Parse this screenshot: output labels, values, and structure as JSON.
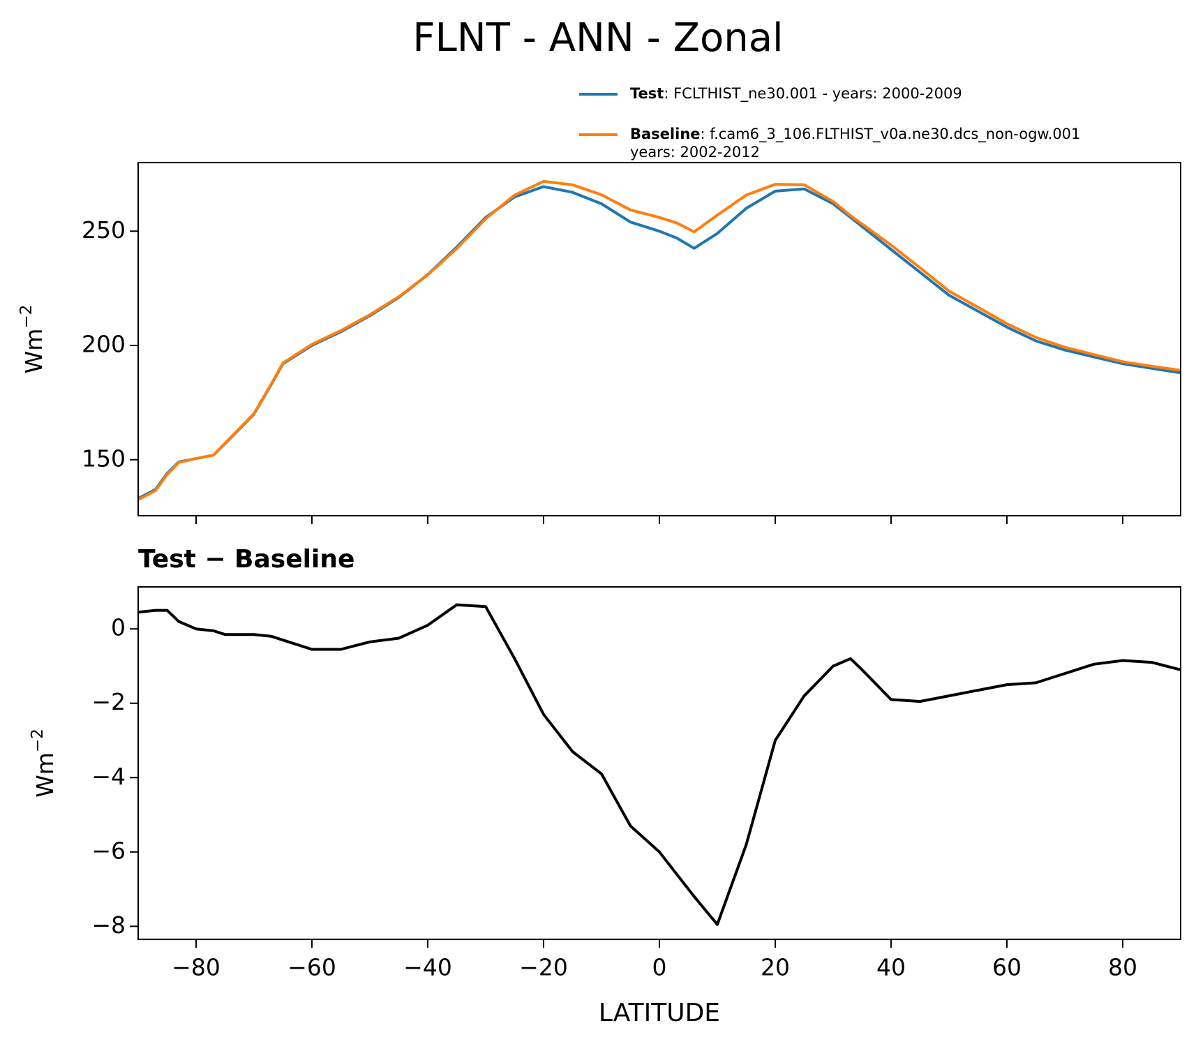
{
  "chart_data": [
    {
      "type": "line",
      "title": "FLNT - ANN - Zonal",
      "ylabel": {
        "base": "Wm",
        "sup": "−2"
      },
      "x": [
        -90,
        -87,
        -85,
        -83,
        -80,
        -77,
        -75,
        -70,
        -67,
        -65,
        -60,
        -55,
        -50,
        -45,
        -40,
        -35,
        -30,
        -25,
        -20,
        -15,
        -10,
        -5,
        0,
        3,
        6,
        10,
        15,
        20,
        25,
        30,
        33,
        35,
        40,
        45,
        50,
        55,
        60,
        65,
        70,
        75,
        80,
        85,
        90
      ],
      "series": [
        {
          "name": "Test",
          "description": [
            ": FCLTHIST_ne30.001 - years: 2000-2009"
          ],
          "color": "#1f77b4",
          "values": [
            133,
            137,
            144,
            149,
            150.5,
            152,
            157,
            170,
            183,
            192,
            200,
            206,
            213,
            221,
            231,
            243,
            256,
            265,
            269.5,
            267,
            262,
            254,
            250,
            247,
            242.5,
            249,
            260,
            267.5,
            268.5,
            262,
            256,
            252,
            242,
            232,
            222,
            215,
            208,
            202,
            198,
            195,
            192,
            190,
            188
          ]
        },
        {
          "name": "Baseline",
          "description": [
            ": f.cam6_3_106.FLTHIST_v0a.ne30.dcs_non-ogw.001",
            "years: 2002-2012"
          ],
          "color": "#ff7f0e",
          "values": [
            132.5,
            136.5,
            143.5,
            148.8,
            150.5,
            152,
            157.2,
            170.2,
            183.2,
            192.3,
            200.5,
            206.5,
            213.4,
            221.3,
            230.9,
            242.4,
            255.4,
            265.8,
            271.8,
            270.3,
            265.9,
            259.3,
            256,
            253.6,
            249.7,
            257,
            265.8,
            270.5,
            270.3,
            263,
            256.8,
            253.1,
            243.9,
            234,
            223.8,
            216.7,
            209.5,
            203.5,
            199.2,
            196,
            192.9,
            190.9,
            189.1
          ]
        }
      ],
      "xlim": [
        -90,
        90
      ],
      "xticks": [
        {
          "value": -80,
          "label": "−80"
        },
        {
          "value": -60,
          "label": "−60"
        },
        {
          "value": -40,
          "label": "−40"
        },
        {
          "value": -20,
          "label": "−20"
        },
        0,
        20,
        40,
        60,
        80
      ],
      "ylim": [
        125.5,
        280
      ],
      "yticks": [
        150,
        200,
        250
      ]
    },
    {
      "type": "line",
      "title": "Test − Baseline",
      "ylabel": {
        "base": "Wm",
        "sup": "−2"
      },
      "xlabel": "LATITUDE",
      "x": [
        -90,
        -87,
        -85,
        -83,
        -80,
        -77,
        -75,
        -70,
        -67,
        -65,
        -60,
        -55,
        -50,
        -45,
        -40,
        -35,
        -30,
        -25,
        -20,
        -15,
        -10,
        -5,
        0,
        3,
        6,
        10,
        15,
        20,
        25,
        30,
        33,
        35,
        40,
        45,
        50,
        55,
        60,
        65,
        70,
        75,
        80,
        85,
        90
      ],
      "series": [
        {
          "color": "#000000",
          "values": [
            0.45,
            0.5,
            0.5,
            0.2,
            0,
            -0.05,
            -0.15,
            -0.15,
            -0.2,
            -0.3,
            -0.55,
            -0.55,
            -0.35,
            -0.25,
            0.1,
            0.65,
            0.6,
            -0.8,
            -2.3,
            -3.3,
            -3.9,
            -5.3,
            -6.0,
            -6.6,
            -7.2,
            -7.95,
            -5.8,
            -3.0,
            -1.8,
            -1.0,
            -0.8,
            -1.1,
            -1.9,
            -1.95,
            -1.8,
            -1.65,
            -1.5,
            -1.45,
            -1.2,
            -0.95,
            -0.85,
            -0.9,
            -1.1
          ]
        }
      ],
      "xlim": [
        -90,
        90
      ],
      "xticks": [
        {
          "value": -80,
          "label": "−80"
        },
        {
          "value": -60,
          "label": "−60"
        },
        {
          "value": -40,
          "label": "−40"
        },
        {
          "value": -20,
          "label": "−20"
        },
        0,
        20,
        40,
        60,
        80
      ],
      "ylim": [
        -8.35,
        1.13
      ],
      "yticks": [
        {
          "value": -8,
          "label": "−8"
        },
        {
          "value": -6,
          "label": "−6"
        },
        {
          "value": -4,
          "label": "−4"
        },
        {
          "value": -2,
          "label": "−2"
        },
        0
      ]
    }
  ]
}
